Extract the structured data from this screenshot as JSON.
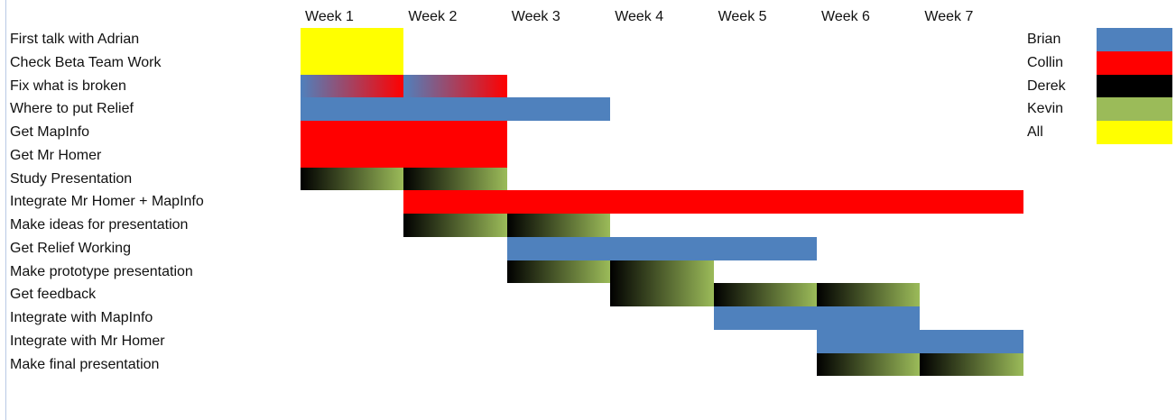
{
  "chart_data": {
    "type": "gantt",
    "title": "",
    "weeks": [
      "Week 1",
      "Week 2",
      "Week 3",
      "Week 4",
      "Week 5",
      "Week 6",
      "Week 7"
    ],
    "tasks": [
      {
        "name": "First talk with Adrian",
        "segments": [
          {
            "start": 1,
            "end": 1,
            "owner": "All"
          }
        ]
      },
      {
        "name": "Check Beta Team Work",
        "segments": [
          {
            "start": 1,
            "end": 1,
            "owner": "All"
          }
        ]
      },
      {
        "name": "Fix what is broken",
        "segments": [
          {
            "start": 1,
            "end": 1,
            "owner": "Brian/Collin"
          },
          {
            "start": 2,
            "end": 2,
            "owner": "Brian/Collin"
          }
        ]
      },
      {
        "name": "Where to put Relief",
        "segments": [
          {
            "start": 1,
            "end": 3,
            "owner": "Brian"
          }
        ]
      },
      {
        "name": "Get MapInfo",
        "segments": [
          {
            "start": 1,
            "end": 2,
            "owner": "Collin"
          }
        ]
      },
      {
        "name": "Get Mr Homer",
        "segments": [
          {
            "start": 1,
            "end": 2,
            "owner": "Collin"
          }
        ]
      },
      {
        "name": "Study Presentation",
        "segments": [
          {
            "start": 1,
            "end": 1,
            "owner": "Derek/Kevin"
          },
          {
            "start": 2,
            "end": 2,
            "owner": "Derek/Kevin"
          }
        ]
      },
      {
        "name": "Integrate Mr Homer + MapInfo",
        "segments": [
          {
            "start": 2,
            "end": 7,
            "owner": "Collin"
          }
        ]
      },
      {
        "name": "Make ideas for presentation",
        "segments": [
          {
            "start": 2,
            "end": 2,
            "owner": "Derek/Kevin"
          },
          {
            "start": 3,
            "end": 3,
            "owner": "Derek/Kevin"
          }
        ]
      },
      {
        "name": "Get Relief Working",
        "segments": [
          {
            "start": 3,
            "end": 5,
            "owner": "Brian"
          }
        ]
      },
      {
        "name": "Make prototype presentation",
        "segments": [
          {
            "start": 3,
            "end": 3,
            "owner": "Derek/Kevin"
          },
          {
            "start": 4,
            "end": 4,
            "owner": "Derek/Kevin"
          }
        ]
      },
      {
        "name": "Get feedback",
        "segments": [
          {
            "start": 4,
            "end": 4,
            "owner": "Derek/Kevin"
          },
          {
            "start": 5,
            "end": 5,
            "owner": "Derek/Kevin"
          },
          {
            "start": 6,
            "end": 6,
            "owner": "Derek/Kevin"
          }
        ]
      },
      {
        "name": "Integrate with MapInfo",
        "segments": [
          {
            "start": 5,
            "end": 6,
            "owner": "Brian"
          }
        ]
      },
      {
        "name": "Integrate with Mr Homer",
        "segments": [
          {
            "start": 6,
            "end": 7,
            "owner": "Brian"
          }
        ]
      },
      {
        "name": "Make final presentation",
        "segments": [
          {
            "start": 6,
            "end": 6,
            "owner": "Derek/Kevin"
          },
          {
            "start": 7,
            "end": 7,
            "owner": "Derek/Kevin"
          }
        ]
      }
    ],
    "legend": [
      {
        "name": "Brian",
        "color": "#4f81bd"
      },
      {
        "name": "Collin",
        "color": "#ff0000"
      },
      {
        "name": "Derek",
        "color": "#000000"
      },
      {
        "name": "Kevin",
        "color": "#9bbb59"
      },
      {
        "name": "All",
        "color": "#ffff00"
      }
    ],
    "legend_position": "right",
    "grid": false
  }
}
